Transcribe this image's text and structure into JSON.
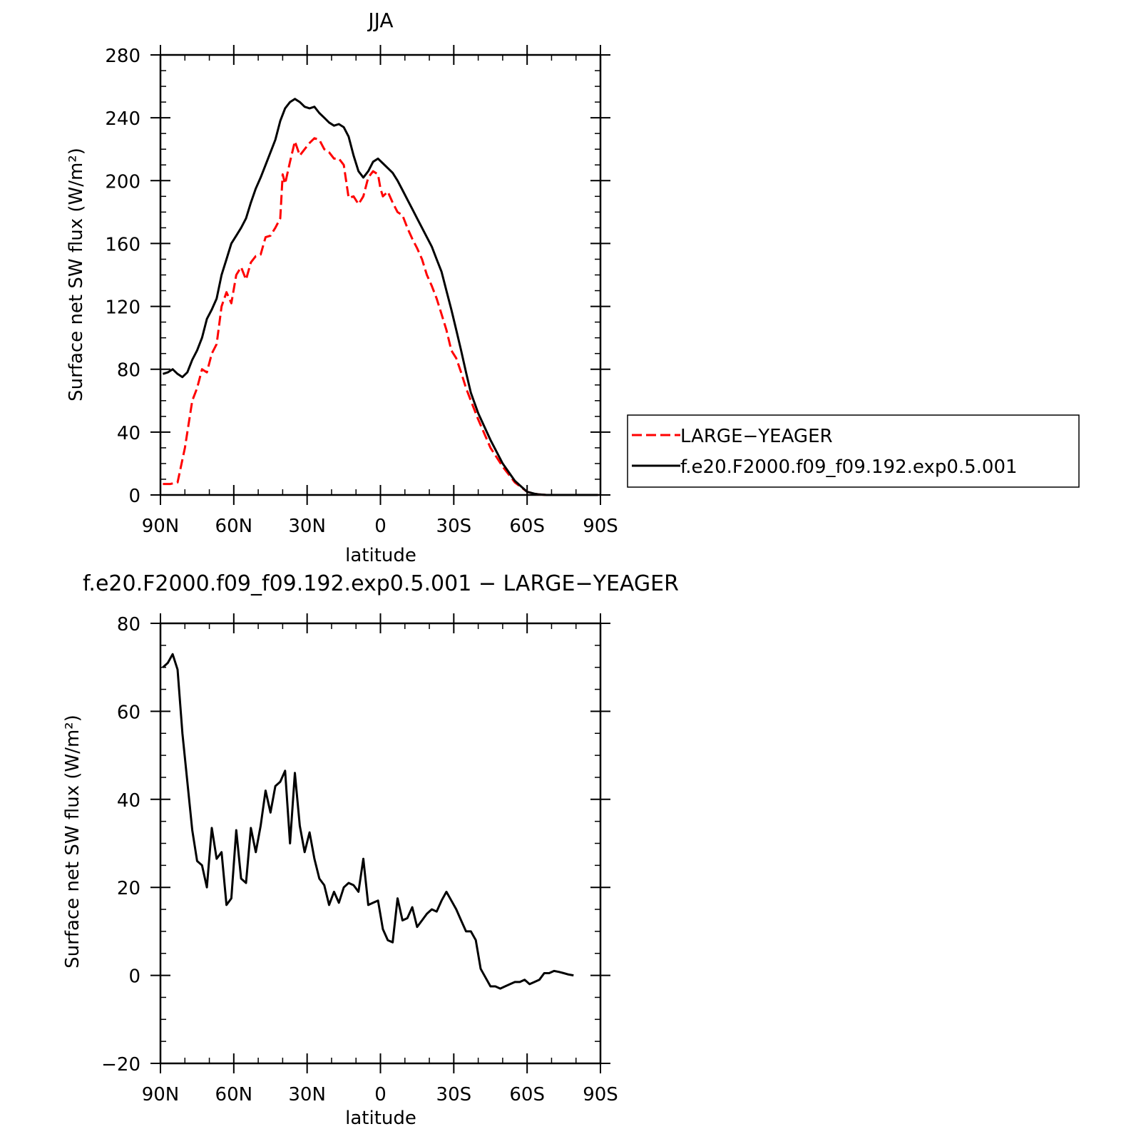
{
  "chart_data": [
    {
      "type": "line",
      "title": "JJA",
      "xlabel": "latitude",
      "ylabel": "Surface net SW flux (W/m²)",
      "xlim": [
        90,
        -90
      ],
      "ylim": [
        0,
        280
      ],
      "x_ticks": [
        90,
        60,
        30,
        0,
        -30,
        -60,
        -90
      ],
      "x_tick_labels": [
        "90N",
        "60N",
        "30N",
        "0",
        "30S",
        "60S",
        "90S"
      ],
      "y_ticks": [
        0,
        40,
        80,
        120,
        160,
        200,
        240,
        280
      ],
      "y_tick_labels": [
        "0",
        "40",
        "80",
        "120",
        "160",
        "200",
        "240",
        "280"
      ],
      "legend_position": "right-outside",
      "series": [
        {
          "name": "LARGE−YEAGER",
          "color": "#ff0000",
          "dash": "dashed",
          "x": [
            89,
            86,
            83,
            80,
            77,
            75,
            73,
            71,
            69,
            67,
            65,
            63,
            61,
            59,
            57,
            55,
            53,
            51,
            49,
            47,
            45,
            43,
            41,
            40,
            39,
            37,
            35,
            33,
            31,
            29,
            27,
            25,
            23,
            21,
            19,
            17,
            15,
            13,
            11,
            9,
            7,
            5,
            3,
            1,
            0,
            -1,
            -3,
            -5,
            -7,
            -9,
            -11,
            -13,
            -15,
            -17,
            -19,
            -21,
            -23,
            -25,
            -27,
            -29,
            -31,
            -33,
            -35,
            -37,
            -40,
            -45,
            -50,
            -55,
            -60,
            -63,
            -65,
            -68,
            -70,
            -75,
            -80,
            -85,
            -89
          ],
          "y": [
            7,
            7,
            8,
            30,
            60,
            68,
            80,
            78,
            90,
            96,
            120,
            129,
            122,
            140,
            145,
            137,
            148,
            152,
            153,
            164,
            165,
            170,
            176,
            204,
            198,
            212,
            225,
            216,
            220,
            224,
            227,
            226,
            220,
            218,
            214,
            214,
            210,
            189,
            190,
            185,
            190,
            202,
            206,
            204,
            195,
            190,
            193,
            186,
            180,
            178,
            170,
            163,
            157,
            150,
            140,
            133,
            125,
            115,
            105,
            92,
            87,
            78,
            68,
            60,
            48,
            30,
            18,
            8,
            2,
            0.8,
            0.3,
            0,
            0,
            0,
            0,
            0,
            0
          ]
        },
        {
          "name": "f.e20.F2000.f09_f09.192.exp0.5.001",
          "color": "#000000",
          "dash": "solid",
          "x": [
            89,
            87,
            85,
            83,
            81,
            79,
            77,
            75,
            73,
            71,
            69,
            67,
            65,
            63,
            61,
            59,
            57,
            55,
            53,
            51,
            49,
            47,
            45,
            43,
            41,
            39,
            37,
            35,
            33,
            31,
            29,
            27,
            25,
            23,
            21,
            19,
            17,
            15,
            13,
            11,
            9,
            7,
            5,
            3,
            1,
            -1,
            -3,
            -5,
            -7,
            -9,
            -11,
            -13,
            -15,
            -17,
            -19,
            -21,
            -23,
            -25,
            -27,
            -29,
            -31,
            -33,
            -35,
            -37,
            -40,
            -45,
            -50,
            -55,
            -60,
            -63,
            -65,
            -68,
            -70,
            -75,
            -80,
            -85,
            -89
          ],
          "y": [
            77,
            78,
            80,
            77,
            75,
            78,
            86,
            92,
            100,
            112,
            118,
            125,
            140,
            150,
            160,
            165,
            170,
            176,
            186,
            195,
            202,
            210,
            218,
            226,
            238,
            246,
            250,
            252,
            250,
            247,
            246,
            247,
            243,
            240,
            237,
            235,
            236,
            234,
            228,
            216,
            206,
            202,
            206,
            212,
            214,
            211,
            208,
            205,
            200,
            194,
            188,
            182,
            176,
            170,
            164,
            158,
            150,
            142,
            130,
            118,
            105,
            92,
            78,
            65,
            52,
            35,
            20,
            9,
            2,
            0.8,
            0.3,
            0,
            0,
            0,
            0,
            0,
            0
          ]
        }
      ]
    },
    {
      "type": "line",
      "title": "f.e20.F2000.f09_f09.192.exp0.5.001 − LARGE−YEAGER",
      "xlabel": "latitude",
      "ylabel": "Surface net SW flux (W/m²)",
      "xlim": [
        90,
        -90
      ],
      "ylim": [
        -20,
        80
      ],
      "x_ticks": [
        90,
        60,
        30,
        0,
        -30,
        -60,
        -90
      ],
      "x_tick_labels": [
        "90N",
        "60N",
        "30N",
        "0",
        "30S",
        "60S",
        "90S"
      ],
      "y_ticks": [
        -20,
        0,
        20,
        40,
        60,
        80
      ],
      "y_tick_labels": [
        "−20",
        "0",
        "20",
        "40",
        "60",
        "80"
      ],
      "series": [
        {
          "color": "#000000",
          "dash": "solid",
          "x": [
            89,
            87,
            85,
            83,
            81,
            79,
            77,
            75,
            73,
            71,
            69,
            67,
            65,
            63,
            61,
            59,
            57,
            55,
            53,
            51,
            49,
            47,
            45,
            43,
            41,
            39,
            37,
            35,
            33,
            31,
            29,
            27,
            25,
            23,
            21,
            19,
            17,
            15,
            13,
            11,
            9,
            7,
            5,
            3,
            1,
            -1,
            -3,
            -5,
            -7,
            -9,
            -11,
            -13,
            -15,
            -17,
            -19,
            -21,
            -23,
            -25,
            -27,
            -29,
            -31,
            -33,
            -35,
            -37,
            -39,
            -41,
            -43,
            -45,
            -47,
            -49,
            -51,
            -53,
            -55,
            -57,
            -59,
            -61,
            -63,
            -65,
            -67,
            -69,
            -71,
            -73,
            -75,
            -77,
            -79
          ],
          "y": [
            70,
            71,
            73,
            69.5,
            55,
            44,
            33,
            26,
            25,
            20,
            33.5,
            26.5,
            28,
            16,
            17.5,
            33,
            22,
            21,
            33.5,
            28,
            34,
            42,
            37,
            43,
            44,
            46.5,
            30,
            46,
            34,
            28,
            32.5,
            26.5,
            22,
            20.5,
            16,
            19,
            16.5,
            20,
            21,
            20.5,
            19,
            26.5,
            16,
            16.5,
            17,
            10.5,
            8,
            7.5,
            17.5,
            12.5,
            13,
            15.5,
            11,
            12.5,
            14,
            15,
            14.5,
            17,
            19,
            17,
            15,
            12.5,
            10,
            10,
            8,
            1.5,
            -0.5,
            -2.5,
            -2.5,
            -3,
            -2.5,
            -2,
            -1.5,
            -1.5,
            -1,
            -2,
            -1.5,
            -1,
            0.5,
            0.5,
            1,
            0.8,
            0.5,
            0.2,
            0
          ]
        }
      ]
    }
  ]
}
